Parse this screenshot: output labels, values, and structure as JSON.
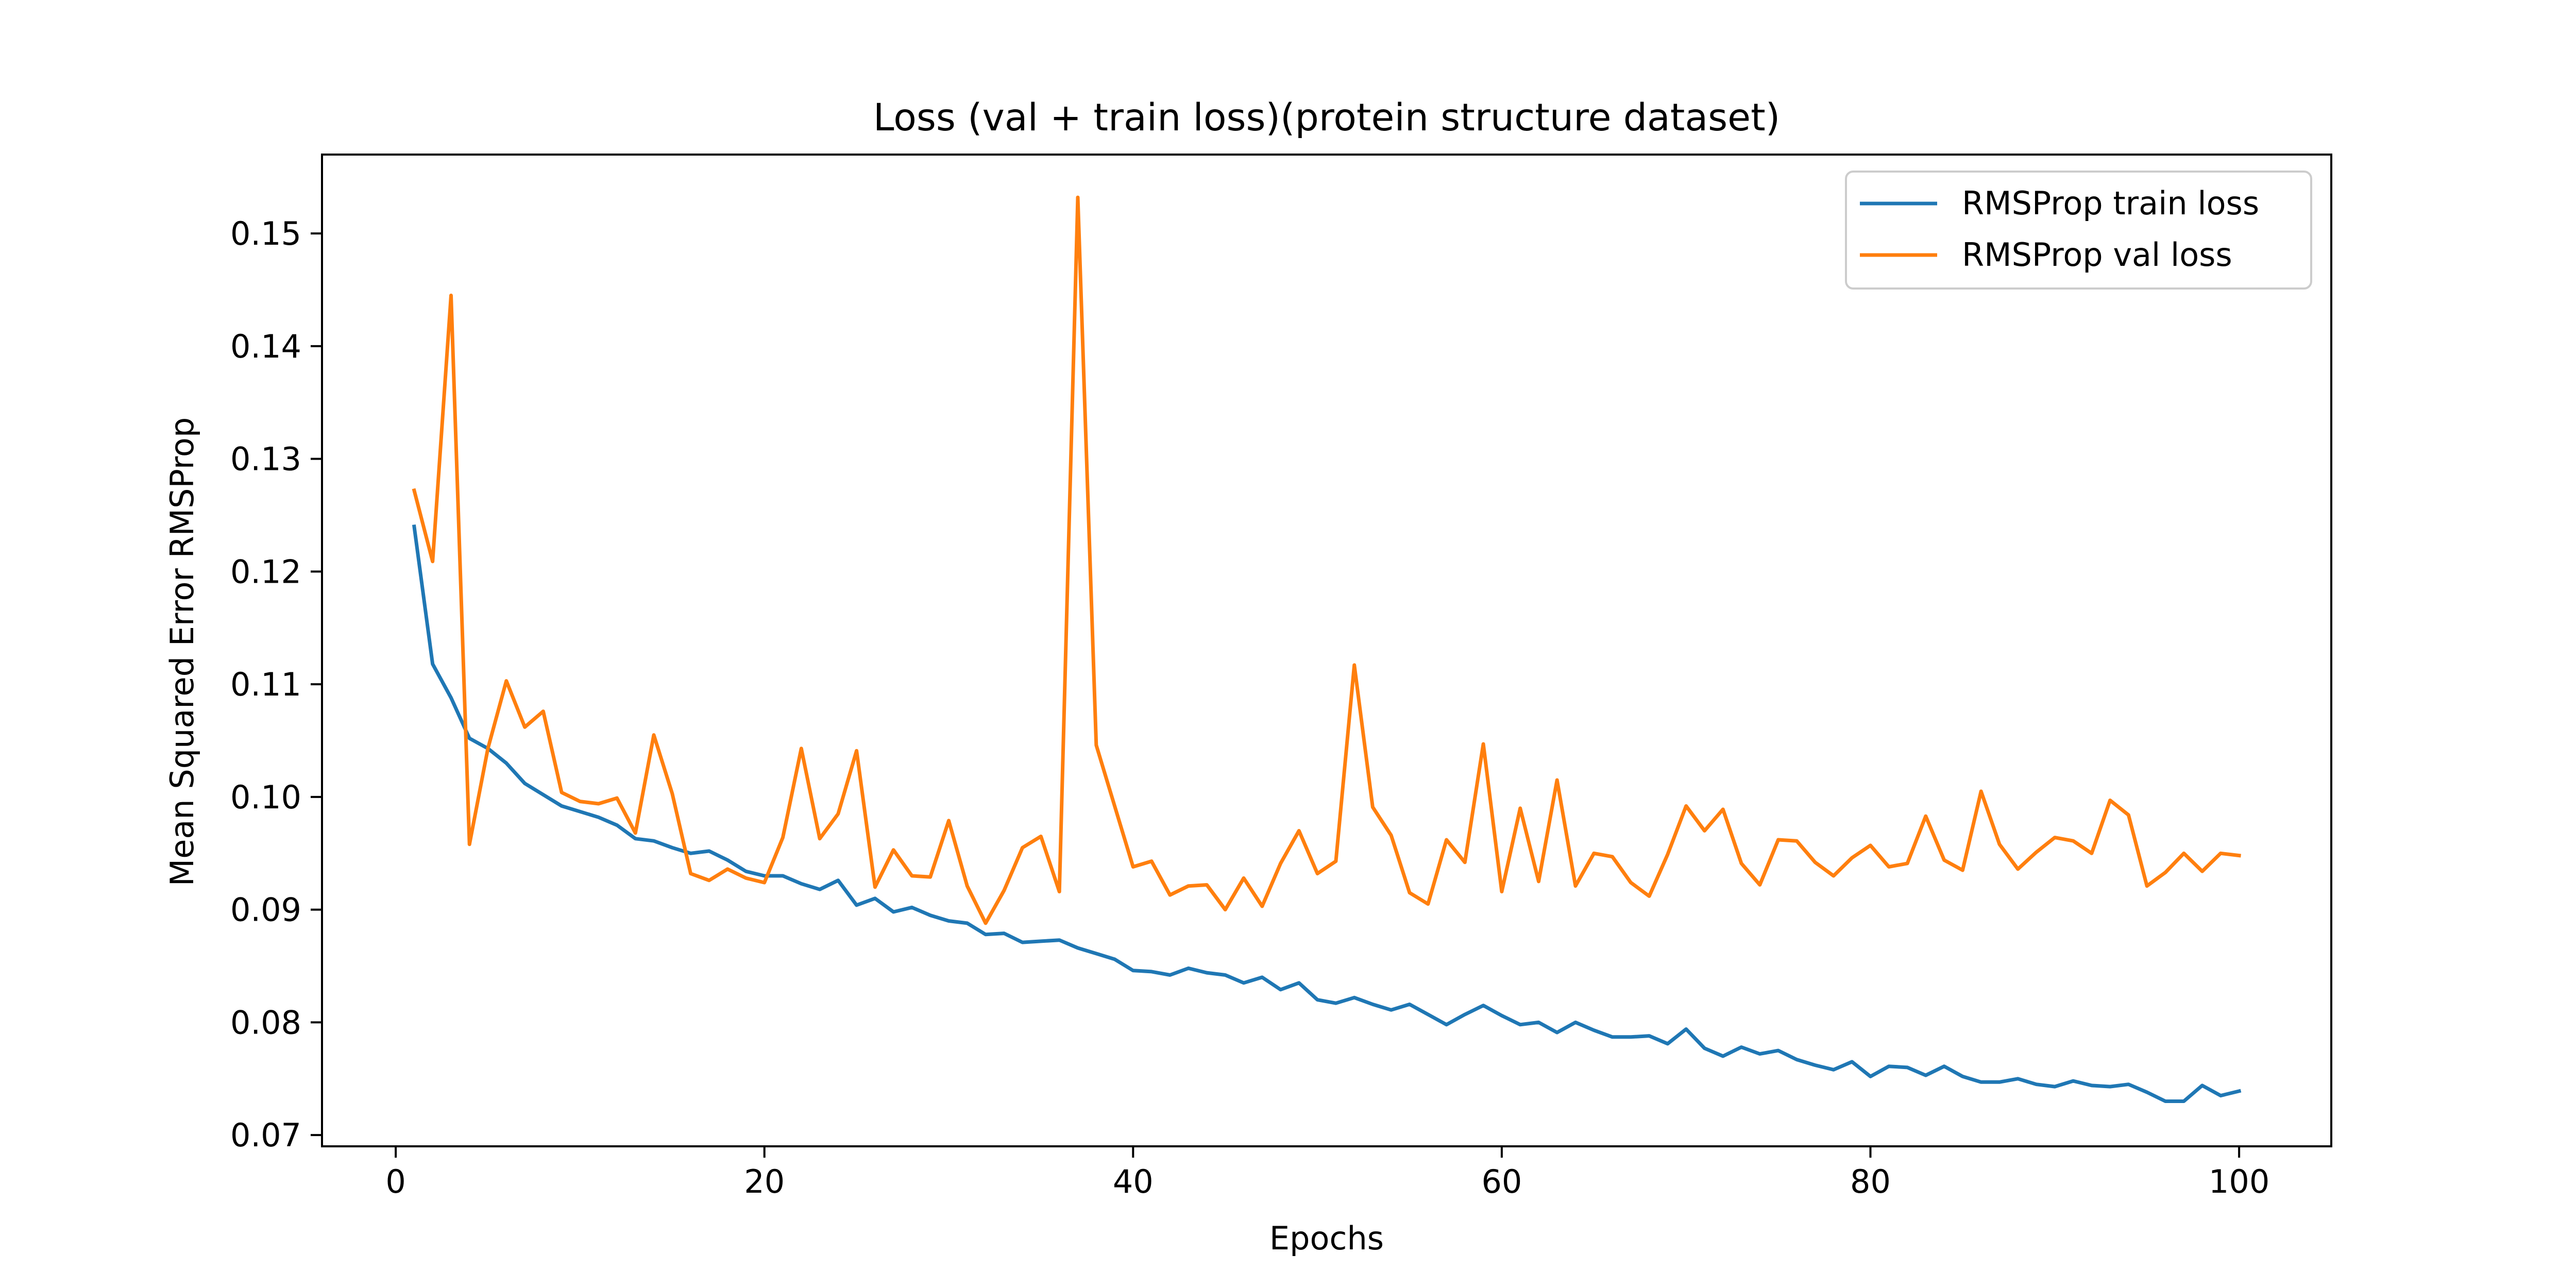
{
  "chart_data": {
    "type": "line",
    "title": "Loss (val + train loss)(protein structure dataset)",
    "xlabel": "Epochs",
    "ylabel": "Mean Squared Error RMSProp",
    "xlim": [
      -4,
      105
    ],
    "ylim": [
      0.069,
      0.157
    ],
    "xticks": [
      0,
      20,
      40,
      60,
      80,
      100
    ],
    "xtick_labels": [
      "0",
      "20",
      "40",
      "60",
      "80",
      "100"
    ],
    "yticks": [
      0.07,
      0.08,
      0.09,
      0.1,
      0.11,
      0.12,
      0.13,
      0.14,
      0.15
    ],
    "ytick_labels": [
      "0.07",
      "0.08",
      "0.09",
      "0.10",
      "0.11",
      "0.12",
      "0.13",
      "0.14",
      "0.15"
    ],
    "grid": false,
    "legend_position": "upper right",
    "x": [
      1,
      2,
      3,
      4,
      5,
      6,
      7,
      8,
      9,
      10,
      11,
      12,
      13,
      14,
      15,
      16,
      17,
      18,
      19,
      20,
      21,
      22,
      23,
      24,
      25,
      26,
      27,
      28,
      29,
      30,
      31,
      32,
      33,
      34,
      35,
      36,
      37,
      38,
      39,
      40,
      41,
      42,
      43,
      44,
      45,
      46,
      47,
      48,
      49,
      50,
      51,
      52,
      53,
      54,
      55,
      56,
      57,
      58,
      59,
      60,
      61,
      62,
      63,
      64,
      65,
      66,
      67,
      68,
      69,
      70,
      71,
      72,
      73,
      74,
      75,
      76,
      77,
      78,
      79,
      80,
      81,
      82,
      83,
      84,
      85,
      86,
      87,
      88,
      89,
      90,
      91,
      92,
      93,
      94,
      95,
      96,
      97,
      98,
      99,
      100
    ],
    "series": [
      {
        "name": "RMSProp train loss",
        "color": "#1f77b4",
        "values": [
          0.124,
          0.1118,
          0.1088,
          0.1052,
          0.1043,
          0.103,
          0.1012,
          0.1002,
          0.0992,
          0.0987,
          0.0982,
          0.0975,
          0.0963,
          0.0961,
          0.0955,
          0.095,
          0.0952,
          0.0944,
          0.0934,
          0.093,
          0.093,
          0.0923,
          0.0918,
          0.0926,
          0.0904,
          0.091,
          0.0898,
          0.0902,
          0.0895,
          0.089,
          0.0888,
          0.0878,
          0.0879,
          0.0871,
          0.0872,
          0.0873,
          0.0866,
          0.0861,
          0.0856,
          0.0846,
          0.0845,
          0.0842,
          0.0848,
          0.0844,
          0.0842,
          0.0835,
          0.084,
          0.0829,
          0.0835,
          0.082,
          0.0817,
          0.0822,
          0.0816,
          0.0811,
          0.0816,
          0.0807,
          0.0798,
          0.0807,
          0.0815,
          0.0806,
          0.0798,
          0.08,
          0.0791,
          0.08,
          0.0793,
          0.0787,
          0.0787,
          0.0788,
          0.0781,
          0.0794,
          0.0777,
          0.077,
          0.0778,
          0.0772,
          0.0775,
          0.0767,
          0.0762,
          0.0758,
          0.0765,
          0.0752,
          0.0761,
          0.076,
          0.0753,
          0.0761,
          0.0752,
          0.0747,
          0.0747,
          0.075,
          0.0745,
          0.0743,
          0.0748,
          0.0744,
          0.0743,
          0.0745,
          0.0738,
          0.073,
          0.073,
          0.0744,
          0.0735,
          0.0739
        ]
      },
      {
        "name": "RMSProp val loss",
        "color": "#ff7f0e",
        "values": [
          0.1272,
          0.1209,
          0.1445,
          0.0958,
          0.1043,
          0.1103,
          0.1062,
          0.1076,
          0.1004,
          0.0996,
          0.0994,
          0.0999,
          0.0968,
          0.1055,
          0.1003,
          0.0932,
          0.0926,
          0.0936,
          0.0928,
          0.0924,
          0.0964,
          0.1043,
          0.0963,
          0.0985,
          0.1041,
          0.092,
          0.0953,
          0.093,
          0.0929,
          0.0979,
          0.0921,
          0.0888,
          0.0917,
          0.0955,
          0.0965,
          0.0916,
          0.1532,
          0.1046,
          0.0992,
          0.0938,
          0.0943,
          0.0913,
          0.0921,
          0.0922,
          0.09,
          0.0928,
          0.0903,
          0.0941,
          0.097,
          0.0932,
          0.0943,
          0.1117,
          0.0991,
          0.0966,
          0.0915,
          0.0905,
          0.0962,
          0.0942,
          0.1047,
          0.0916,
          0.099,
          0.0925,
          0.1015,
          0.0921,
          0.095,
          0.0947,
          0.0924,
          0.0912,
          0.0949,
          0.0992,
          0.097,
          0.0989,
          0.0941,
          0.0922,
          0.0962,
          0.0961,
          0.0942,
          0.093,
          0.0946,
          0.0957,
          0.0938,
          0.0941,
          0.0983,
          0.0944,
          0.0935,
          0.1005,
          0.0958,
          0.0936,
          0.0951,
          0.0964,
          0.0961,
          0.095,
          0.0997,
          0.0984,
          0.0921,
          0.0933,
          0.095,
          0.0934,
          0.095,
          0.0948
        ]
      }
    ]
  }
}
